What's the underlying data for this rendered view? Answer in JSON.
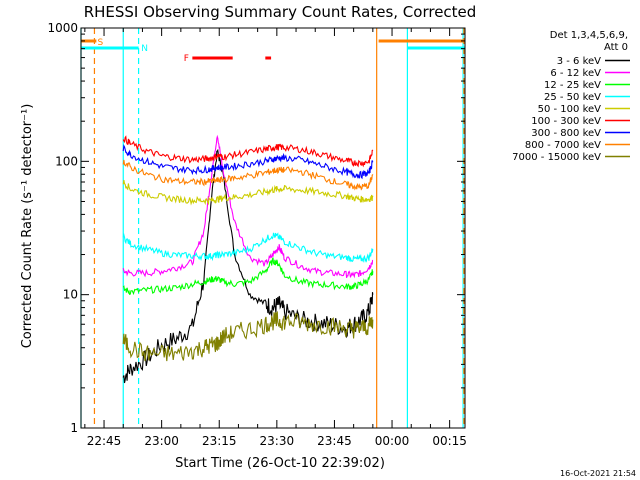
{
  "chart_data": {
    "type": "line",
    "title": "RHESSI Observing Summary Count Rates, Corrected",
    "xlabel": "Start Time (26-Oct-10 22:39:02)",
    "ylabel": "Corrected Count Rate (s⁻¹ detector⁻¹)",
    "y_scale": "log",
    "ylim": [
      1,
      1000
    ],
    "y_ticks": [
      1,
      10,
      100,
      1000
    ],
    "y_tick_labels": [
      "1",
      "10",
      "100",
      "1000"
    ],
    "xlim_minutes_after_22_39": [
      0,
      100
    ],
    "x_ticks": [
      "22:45",
      "23:00",
      "23:15",
      "23:30",
      "23:45",
      "00:00",
      "00:15"
    ],
    "x_tick_minutes_after_22_39": [
      6,
      21,
      36,
      51,
      66,
      81,
      96
    ],
    "legend": {
      "placement": "right",
      "header": [
        "Det 1,3,4,5,6,9,",
        "Att 0"
      ]
    },
    "flags": [
      {
        "label": "S",
        "color": "#ff8000",
        "segments": [
          [
            0,
            4
          ],
          [
            77.5,
            100
          ]
        ],
        "level": "top"
      },
      {
        "label": "N",
        "color": "#00ffff",
        "segments": [
          [
            0,
            15
          ],
          [
            85,
            100
          ]
        ],
        "level": "upper"
      },
      {
        "label": "F",
        "color": "#ff0000",
        "segments": [
          [
            29,
            39.5
          ],
          [
            48,
            49.5
          ]
        ],
        "level": "upper"
      }
    ],
    "vlines": [
      {
        "time": 0,
        "color": "#00ffff",
        "style": "solid"
      },
      {
        "time": 3.5,
        "color": "#ff8000",
        "style": "dashed"
      },
      {
        "time": 11,
        "color": "#00ffff",
        "style": "solid"
      },
      {
        "time": 15,
        "color": "#00ffff",
        "style": "dashed"
      },
      {
        "time": 77,
        "color": "#ff8000",
        "style": "solid"
      },
      {
        "time": 85,
        "color": "#00ffff",
        "style": "solid"
      },
      {
        "time": 99.5,
        "color": "#00ffff",
        "style": "solid"
      },
      {
        "time": 99.7,
        "color": "#ff8000",
        "style": "dashed"
      }
    ],
    "x_minutes_after_22_39": [
      11,
      13,
      17,
      21,
      25,
      29,
      32,
      34,
      35.5,
      37,
      40,
      44,
      48,
      50,
      51.5,
      53,
      57,
      61,
      65,
      69,
      71,
      73,
      75,
      76
    ],
    "series": [
      {
        "name": "3 - 6 keV",
        "color": "#000000",
        "values": [
          2.4,
          2.8,
          3.3,
          4.2,
          4.7,
          5.7,
          13,
          55,
          120,
          80,
          20,
          10,
          8.5,
          8,
          8.5,
          7.5,
          6.5,
          6.2,
          6,
          5.6,
          6,
          6.5,
          7.5,
          10
        ]
      },
      {
        "name": "6 - 12 keV",
        "color": "#ff00ff",
        "values": [
          15,
          14.5,
          14.5,
          15,
          16,
          17.5,
          30,
          80,
          160,
          85,
          35,
          19,
          17,
          20,
          23,
          19,
          16.5,
          15,
          14.5,
          14.2,
          14,
          14.5,
          16,
          18
        ]
      },
      {
        "name": "12 - 25 keV",
        "color": "#00ff00",
        "values": [
          11,
          10.5,
          10.8,
          11,
          11.3,
          12,
          12.5,
          13,
          13.2,
          12.5,
          12,
          12.5,
          15,
          18,
          17,
          14,
          12.5,
          12,
          11.8,
          11.5,
          11.5,
          12,
          13,
          15
        ]
      },
      {
        "name": "25 - 50 keV",
        "color": "#00ffff",
        "values": [
          27,
          24,
          22,
          20.5,
          19.8,
          19.5,
          19.5,
          19.5,
          19.8,
          20,
          20.5,
          22,
          26,
          28,
          27,
          25,
          22.5,
          20.5,
          19.5,
          19,
          18.5,
          18.5,
          19,
          22
        ]
      },
      {
        "name": "50 - 100 keV",
        "color": "#cccc00",
        "values": [
          70,
          62,
          57,
          54,
          52,
          51,
          51,
          51,
          52,
          53,
          54,
          56,
          59,
          61,
          62,
          62,
          61,
          59,
          57,
          55,
          53,
          52,
          52,
          54
        ]
      },
      {
        "name": "100 - 300 keV",
        "color": "#ff0000",
        "values": [
          150,
          135,
          120,
          110,
          106,
          103,
          104,
          106,
          110,
          108,
          112,
          117,
          123,
          127,
          128,
          127,
          123,
          116,
          108,
          101,
          98,
          97,
          100,
          120
        ]
      },
      {
        "name": "300 - 800 keV",
        "color": "#0000ff",
        "values": [
          125,
          112,
          100,
          92,
          88,
          86,
          86,
          88,
          90,
          90,
          92,
          96,
          100,
          104,
          106,
          106,
          103,
          96,
          89,
          83,
          80,
          79,
          82,
          100
        ]
      },
      {
        "name": "800 - 7000 keV",
        "color": "#ff8000",
        "values": [
          100,
          90,
          80,
          74,
          71,
          70,
          70,
          71,
          72,
          73,
          75,
          78,
          82,
          85,
          86,
          86,
          84,
          78,
          72,
          67,
          65,
          64,
          66,
          80
        ]
      },
      {
        "name": "7000 - 15000 keV",
        "color": "#808000",
        "values": [
          4.5,
          4,
          3.6,
          3.6,
          3.6,
          3.8,
          4,
          4.2,
          4.3,
          4.8,
          5.2,
          5.5,
          6,
          6.3,
          6.3,
          6.3,
          6.2,
          6,
          5.8,
          5.6,
          5.5,
          5.6,
          5.8,
          6.5
        ]
      }
    ],
    "footer_timestamp": "16-Oct-2021 21:54"
  }
}
